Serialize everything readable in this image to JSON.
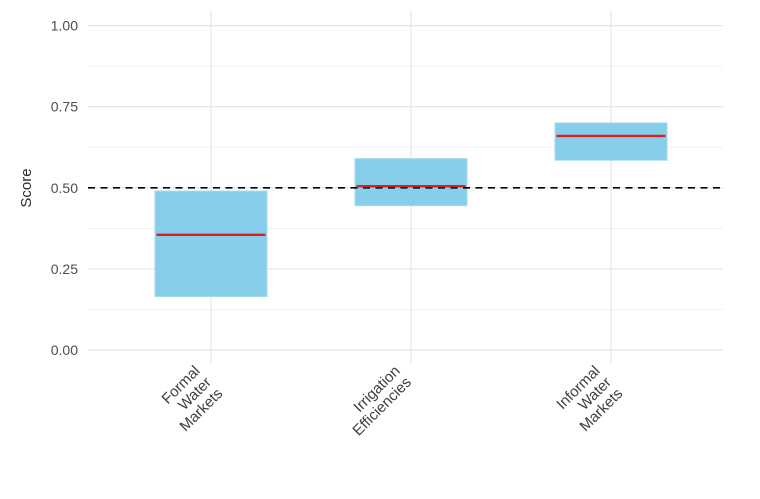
{
  "chart_data": {
    "type": "crossbar",
    "title": "",
    "xlabel": "",
    "ylabel": "Score",
    "ylim": [
      0,
      1
    ],
    "y_ticks": [
      0,
      0.25,
      0.5,
      0.75,
      1
    ],
    "y_tick_labels": [
      "0.00",
      "0.25",
      "0.50",
      "0.75",
      "1.00"
    ],
    "y_minor_gridlines": [
      0.125,
      0.375,
      0.625,
      0.875
    ],
    "grid": true,
    "legend": "none",
    "reference_line": {
      "value": 0.5,
      "style": "dashed",
      "color": "#000000"
    },
    "categories": [
      "Formal Water Markets",
      "Irrigation Efficiencies",
      "Informal Water Markets"
    ],
    "category_label_lines": [
      [
        "Formal",
        "Water",
        "Markets"
      ],
      [
        "Irrigation",
        "Efficiencies"
      ],
      [
        "Informal",
        "Water",
        "Markets"
      ]
    ],
    "series": [
      {
        "name": "Formal Water Markets",
        "lower": 0.165,
        "mid": 0.355,
        "upper": 0.49
      },
      {
        "name": "Irrigation Efficiencies",
        "lower": 0.445,
        "mid": 0.505,
        "upper": 0.59
      },
      {
        "name": "Informal Water Markets",
        "lower": 0.585,
        "mid": 0.66,
        "upper": 0.7
      }
    ],
    "colors": {
      "box_fill": "#87CEEB",
      "box_border": "#A4D9EE",
      "median_line": "#E41A1C",
      "grid_major": "#E5E5E5",
      "grid_minor": "#F1F1F1",
      "axis_text": "#4D4D4D",
      "axis_title": "#2B2B2B",
      "background": "#FFFFFF"
    }
  }
}
